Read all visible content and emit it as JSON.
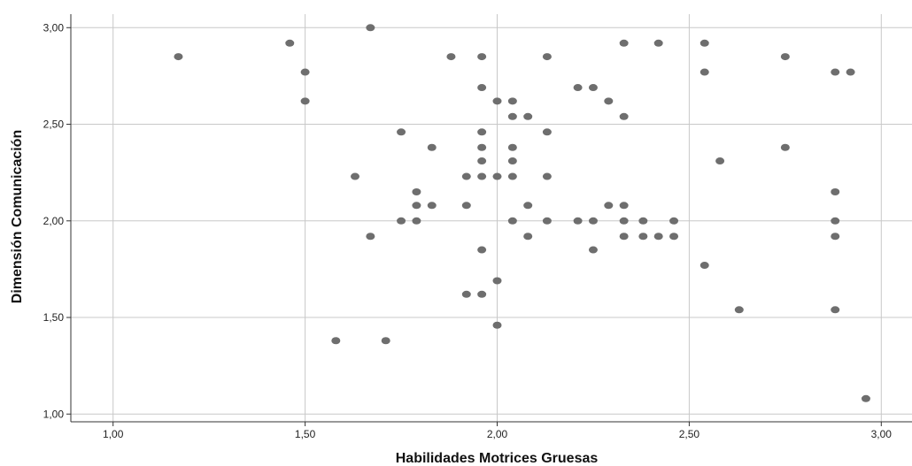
{
  "chart_data": {
    "type": "scatter",
    "title": "",
    "xlabel": "Habilidades Motrices Gruesas",
    "ylabel": "Dimensión Comunicación",
    "xlim": [
      0.89,
      3.08
    ],
    "ylim": [
      0.96,
      3.07
    ],
    "x_ticks": [
      "1,00",
      "1,50",
      "2,00",
      "2,50",
      "3,00"
    ],
    "x_tick_values": [
      1.0,
      1.5,
      2.0,
      2.5,
      3.0
    ],
    "y_ticks": [
      "1,00",
      "1,50",
      "2,00",
      "2,50",
      "3,00"
    ],
    "y_tick_values": [
      1.0,
      1.5,
      2.0,
      2.5,
      3.0
    ],
    "grid": true,
    "point_color": "#6e6e6e",
    "grid_color": "#c8c8c8",
    "points": [
      [
        1.17,
        2.85
      ],
      [
        1.46,
        2.92
      ],
      [
        1.67,
        3.0
      ],
      [
        1.5,
        2.77
      ],
      [
        1.5,
        2.62
      ],
      [
        1.88,
        2.85
      ],
      [
        1.96,
        2.85
      ],
      [
        2.13,
        2.85
      ],
      [
        2.33,
        2.92
      ],
      [
        2.42,
        2.92
      ],
      [
        2.54,
        2.92
      ],
      [
        2.54,
        2.77
      ],
      [
        2.75,
        2.85
      ],
      [
        2.88,
        2.77
      ],
      [
        2.92,
        2.77
      ],
      [
        1.96,
        2.69
      ],
      [
        2.21,
        2.69
      ],
      [
        2.25,
        2.69
      ],
      [
        2.0,
        2.62
      ],
      [
        2.04,
        2.62
      ],
      [
        2.29,
        2.62
      ],
      [
        2.04,
        2.54
      ],
      [
        2.08,
        2.54
      ],
      [
        2.33,
        2.54
      ],
      [
        1.75,
        2.46
      ],
      [
        1.96,
        2.46
      ],
      [
        2.13,
        2.46
      ],
      [
        1.83,
        2.38
      ],
      [
        1.96,
        2.38
      ],
      [
        2.04,
        2.38
      ],
      [
        2.75,
        2.38
      ],
      [
        1.96,
        2.31
      ],
      [
        2.04,
        2.31
      ],
      [
        2.58,
        2.31
      ],
      [
        1.63,
        2.23
      ],
      [
        1.92,
        2.23
      ],
      [
        1.96,
        2.23
      ],
      [
        2.0,
        2.23
      ],
      [
        2.04,
        2.23
      ],
      [
        2.13,
        2.23
      ],
      [
        1.79,
        2.15
      ],
      [
        2.88,
        2.15
      ],
      [
        1.79,
        2.08
      ],
      [
        1.83,
        2.08
      ],
      [
        1.92,
        2.08
      ],
      [
        2.08,
        2.08
      ],
      [
        2.29,
        2.08
      ],
      [
        2.33,
        2.08
      ],
      [
        1.75,
        2.0
      ],
      [
        1.79,
        2.0
      ],
      [
        2.04,
        2.0
      ],
      [
        2.13,
        2.0
      ],
      [
        2.21,
        2.0
      ],
      [
        2.25,
        2.0
      ],
      [
        2.33,
        2.0
      ],
      [
        2.38,
        2.0
      ],
      [
        2.46,
        2.0
      ],
      [
        2.88,
        2.0
      ],
      [
        1.67,
        1.92
      ],
      [
        2.08,
        1.92
      ],
      [
        2.33,
        1.92
      ],
      [
        2.38,
        1.92
      ],
      [
        2.42,
        1.92
      ],
      [
        2.46,
        1.92
      ],
      [
        2.88,
        1.92
      ],
      [
        1.96,
        1.85
      ],
      [
        2.25,
        1.85
      ],
      [
        2.54,
        1.77
      ],
      [
        2.0,
        1.69
      ],
      [
        1.92,
        1.62
      ],
      [
        1.96,
        1.62
      ],
      [
        2.63,
        1.54
      ],
      [
        2.88,
        1.54
      ],
      [
        2.0,
        1.46
      ],
      [
        1.58,
        1.38
      ],
      [
        1.71,
        1.38
      ],
      [
        2.96,
        1.08
      ]
    ]
  }
}
